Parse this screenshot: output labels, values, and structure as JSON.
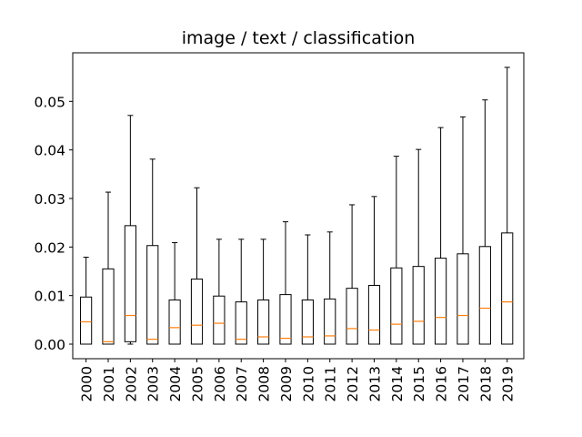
{
  "chart_data": {
    "type": "box",
    "title": "image / text / classification",
    "xlabel": "",
    "ylabel": "",
    "ylim": [
      -0.003,
      0.06
    ],
    "yticks": [
      0.0,
      0.01,
      0.02,
      0.03,
      0.04,
      0.05
    ],
    "ytick_labels": [
      "0.00",
      "0.01",
      "0.02",
      "0.03",
      "0.04",
      "0.05"
    ],
    "grid": false,
    "categories": [
      "2000",
      "2001",
      "2002",
      "2003",
      "2004",
      "2005",
      "2006",
      "2007",
      "2008",
      "2009",
      "2010",
      "2011",
      "2012",
      "2013",
      "2014",
      "2015",
      "2016",
      "2017",
      "2018",
      "2019"
    ],
    "boxes": [
      {
        "whislo": 0.0,
        "q1": 0.0,
        "med": 0.0046,
        "q3": 0.0097,
        "whishi": 0.0179
      },
      {
        "whislo": 0.0,
        "q1": 0.0,
        "med": 0.0005,
        "q3": 0.0155,
        "whishi": 0.0313
      },
      {
        "whislo": 0.0,
        "q1": 0.0005,
        "med": 0.0059,
        "q3": 0.0244,
        "whishi": 0.0471
      },
      {
        "whislo": 0.0,
        "q1": 0.0,
        "med": 0.001,
        "q3": 0.0203,
        "whishi": 0.0381
      },
      {
        "whislo": 0.0,
        "q1": 0.0,
        "med": 0.0034,
        "q3": 0.0091,
        "whishi": 0.0209
      },
      {
        "whislo": 0.0,
        "q1": 0.0,
        "med": 0.0039,
        "q3": 0.0134,
        "whishi": 0.0322
      },
      {
        "whislo": 0.0,
        "q1": 0.0,
        "med": 0.0043,
        "q3": 0.0099,
        "whishi": 0.0216
      },
      {
        "whislo": 0.0,
        "q1": 0.0,
        "med": 0.001,
        "q3": 0.0087,
        "whishi": 0.0216
      },
      {
        "whislo": 0.0,
        "q1": 0.0,
        "med": 0.0015,
        "q3": 0.0091,
        "whishi": 0.0216
      },
      {
        "whislo": 0.0,
        "q1": 0.0,
        "med": 0.0012,
        "q3": 0.0102,
        "whishi": 0.0252
      },
      {
        "whislo": 0.0,
        "q1": 0.0,
        "med": 0.0015,
        "q3": 0.0091,
        "whishi": 0.0225
      },
      {
        "whislo": 0.0,
        "q1": 0.0,
        "med": 0.0017,
        "q3": 0.0093,
        "whishi": 0.0231
      },
      {
        "whislo": 0.0,
        "q1": 0.0,
        "med": 0.0032,
        "q3": 0.0115,
        "whishi": 0.0287
      },
      {
        "whislo": 0.0,
        "q1": 0.0,
        "med": 0.0029,
        "q3": 0.0121,
        "whishi": 0.0304
      },
      {
        "whislo": 0.0,
        "q1": 0.0,
        "med": 0.0041,
        "q3": 0.0157,
        "whishi": 0.0387
      },
      {
        "whislo": 0.0,
        "q1": 0.0,
        "med": 0.0047,
        "q3": 0.016,
        "whishi": 0.0401
      },
      {
        "whislo": 0.0,
        "q1": 0.0,
        "med": 0.0055,
        "q3": 0.0177,
        "whishi": 0.0446
      },
      {
        "whislo": 0.0,
        "q1": 0.0,
        "med": 0.0059,
        "q3": 0.0186,
        "whishi": 0.0468
      },
      {
        "whislo": 0.0,
        "q1": 0.0,
        "med": 0.0074,
        "q3": 0.0201,
        "whishi": 0.0503
      },
      {
        "whislo": 0.0,
        "q1": 0.0,
        "med": 0.0087,
        "q3": 0.0229,
        "whishi": 0.057
      }
    ],
    "colors": {
      "box": "#000000",
      "median": "#ff7f0e",
      "axes": "#000000"
    }
  }
}
